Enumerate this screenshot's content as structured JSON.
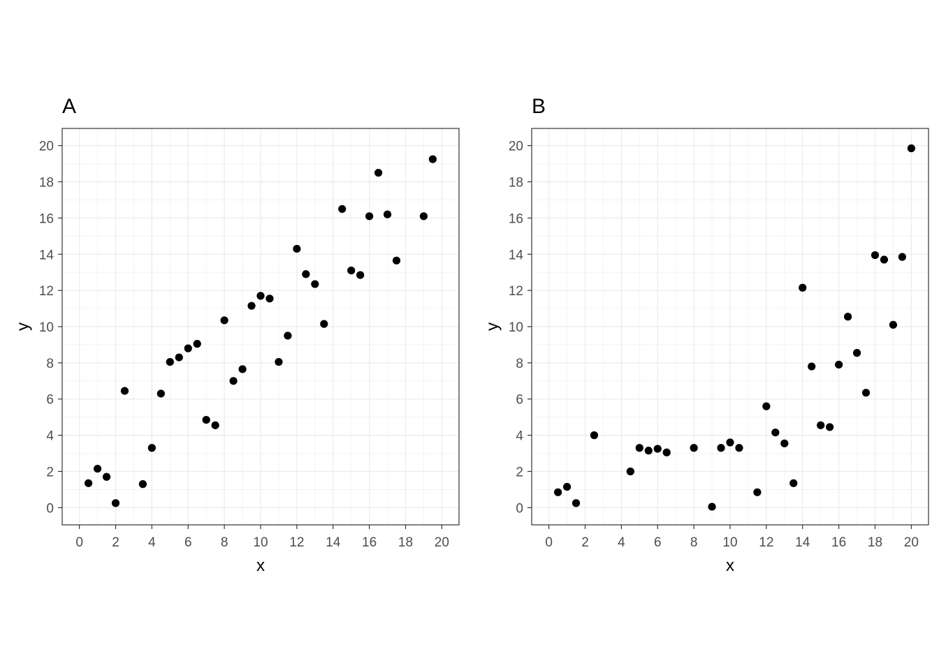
{
  "chart_data": [
    {
      "type": "scatter",
      "title": "A",
      "xlabel": "x",
      "ylabel": "y",
      "xlim": [
        -0.95,
        20.95
      ],
      "ylim": [
        -0.95,
        20.95
      ],
      "xticks": [
        0,
        2,
        4,
        6,
        8,
        10,
        12,
        14,
        16,
        18,
        20
      ],
      "yticks": [
        0,
        2,
        4,
        6,
        8,
        10,
        12,
        14,
        16,
        18,
        20
      ],
      "grid": true,
      "point_color": "#000000",
      "x": [
        0.5,
        1.0,
        1.5,
        2.0,
        2.5,
        3.5,
        4.0,
        4.5,
        5.0,
        5.5,
        6.0,
        6.5,
        7.0,
        7.5,
        8.0,
        8.5,
        9.0,
        9.5,
        10.0,
        10.5,
        11.0,
        11.5,
        12.0,
        12.5,
        13.0,
        13.5,
        14.5,
        15.0,
        15.5,
        16.0,
        16.5,
        17.0,
        17.5,
        19.0,
        19.5
      ],
      "y": [
        1.35,
        2.15,
        1.7,
        0.25,
        6.45,
        1.3,
        3.3,
        6.3,
        8.05,
        8.3,
        8.8,
        9.05,
        4.85,
        4.55,
        10.35,
        7.0,
        7.65,
        11.15,
        11.7,
        11.55,
        8.05,
        9.5,
        14.3,
        12.9,
        12.35,
        10.15,
        16.5,
        13.1,
        12.85,
        16.1,
        18.5,
        16.2,
        13.65,
        16.1,
        19.25
      ]
    },
    {
      "type": "scatter",
      "title": "B",
      "xlabel": "x",
      "ylabel": "y",
      "xlim": [
        -0.95,
        20.95
      ],
      "ylim": [
        -0.95,
        20.95
      ],
      "xticks": [
        0,
        2,
        4,
        6,
        8,
        10,
        12,
        14,
        16,
        18,
        20
      ],
      "yticks": [
        0,
        2,
        4,
        6,
        8,
        10,
        12,
        14,
        16,
        18,
        20
      ],
      "grid": true,
      "point_color": "#000000",
      "x": [
        0.5,
        1.0,
        1.5,
        2.5,
        4.5,
        5.0,
        5.5,
        6.0,
        6.5,
        8.0,
        9.0,
        9.5,
        10.0,
        10.5,
        11.5,
        12.0,
        12.5,
        13.0,
        13.5,
        14.0,
        14.5,
        15.0,
        15.5,
        16.0,
        16.5,
        17.0,
        17.5,
        18.0,
        18.5,
        19.0,
        19.5,
        20.0
      ],
      "y": [
        0.85,
        1.15,
        0.25,
        4.0,
        2.0,
        3.3,
        3.15,
        3.25,
        3.05,
        3.3,
        0.05,
        3.3,
        3.6,
        3.3,
        0.85,
        5.6,
        4.15,
        3.55,
        1.35,
        12.15,
        7.8,
        4.55,
        4.45,
        7.9,
        10.55,
        8.55,
        6.35,
        13.95,
        13.7,
        10.1,
        13.85,
        19.85
      ]
    }
  ]
}
